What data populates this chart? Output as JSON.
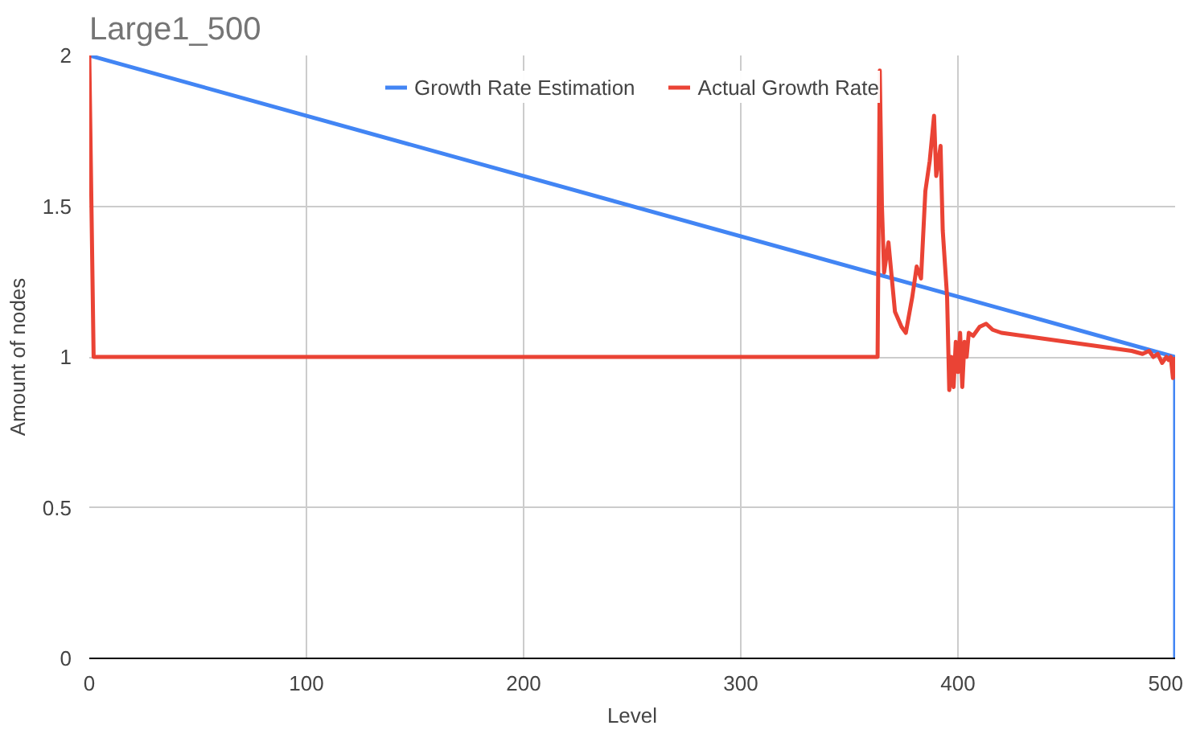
{
  "chart_data": {
    "type": "line",
    "title": "Large1_500",
    "xlabel": "Level",
    "ylabel": "Amount of nodes",
    "xlim": [
      0,
      500
    ],
    "ylim": [
      0,
      2
    ],
    "xticks": [
      0,
      100,
      200,
      300,
      400,
      500
    ],
    "yticks": [
      0,
      0.5,
      1,
      1.5,
      2
    ],
    "grid": true,
    "legend": "top",
    "marker": "none",
    "series": [
      {
        "name": "Growth Rate Estimation",
        "color": "#4285f4",
        "x": [
          0,
          500,
          500
        ],
        "values": [
          2,
          1,
          0
        ]
      },
      {
        "name": "Actual Growth Rate",
        "color": "#ea4335",
        "x": [
          0,
          2,
          363,
          364,
          365,
          366,
          368,
          371,
          374,
          376,
          379,
          381,
          383,
          385,
          387,
          389,
          390,
          392,
          393,
          395,
          396,
          397,
          398,
          399,
          400,
          401,
          402,
          403,
          404,
          405,
          407,
          410,
          413,
          416,
          420,
          430,
          440,
          450,
          460,
          470,
          480,
          485,
          488,
          490,
          492,
          494,
          496,
          497,
          498,
          499,
          500
        ],
        "values": [
          2,
          1,
          1,
          1.95,
          1.5,
          1.28,
          1.38,
          1.15,
          1.1,
          1.08,
          1.2,
          1.3,
          1.26,
          1.55,
          1.65,
          1.8,
          1.6,
          1.7,
          1.42,
          1.2,
          0.89,
          1.0,
          0.9,
          1.05,
          0.95,
          1.08,
          0.9,
          1.05,
          1.0,
          1.08,
          1.07,
          1.1,
          1.11,
          1.09,
          1.08,
          1.07,
          1.06,
          1.05,
          1.04,
          1.03,
          1.02,
          1.01,
          1.02,
          1.0,
          1.01,
          0.98,
          1.0,
          0.99,
          1.0,
          0.93,
          1.0
        ]
      }
    ]
  }
}
